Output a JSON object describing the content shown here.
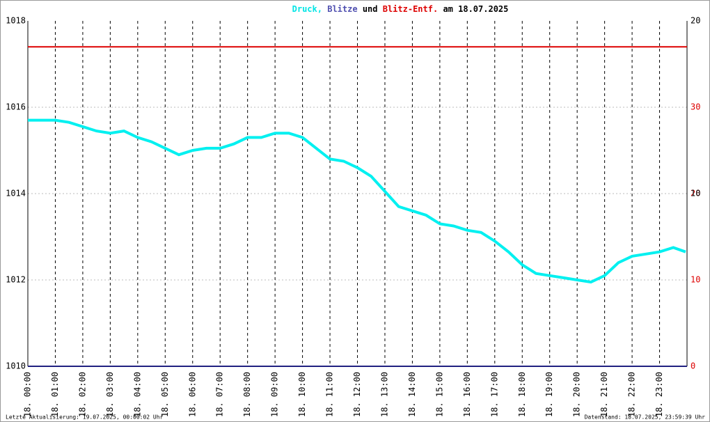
{
  "chart_data": {
    "type": "line",
    "title": [
      "Druck,",
      "Blitze",
      "und",
      "Blitz-Entf.",
      "am 18.07.2025"
    ],
    "title_colors": [
      "#00e5e5",
      "#5050b0",
      "#000000",
      "#dd0000",
      "#000000"
    ],
    "xlim": [
      0,
      24
    ],
    "xticks": [
      {
        "value": 0,
        "label": "18. 00:00"
      },
      {
        "value": 1,
        "label": "18. 01:00"
      },
      {
        "value": 2,
        "label": "18. 02:00"
      },
      {
        "value": 3,
        "label": "18. 03:00"
      },
      {
        "value": 4,
        "label": "18. 04:00"
      },
      {
        "value": 5,
        "label": "18. 05:00"
      },
      {
        "value": 6,
        "label": "18. 06:00"
      },
      {
        "value": 7,
        "label": "18. 07:00"
      },
      {
        "value": 8,
        "label": "18. 08:00"
      },
      {
        "value": 9,
        "label": "18. 09:00"
      },
      {
        "value": 10,
        "label": "18. 10:00"
      },
      {
        "value": 11,
        "label": "18. 11:00"
      },
      {
        "value": 12,
        "label": "18. 12:00"
      },
      {
        "value": 13,
        "label": "18. 13:00"
      },
      {
        "value": 14,
        "label": "18. 14:00"
      },
      {
        "value": 15,
        "label": "18. 15:00"
      },
      {
        "value": 16,
        "label": "18. 16:00"
      },
      {
        "value": 17,
        "label": "18. 17:00"
      },
      {
        "value": 18,
        "label": "18. 18:00"
      },
      {
        "value": 19,
        "label": "18. 19:00"
      },
      {
        "value": 20,
        "label": "18. 20:00"
      },
      {
        "value": 21,
        "label": "18. 21:00"
      },
      {
        "value": 22,
        "label": "18. 22:00"
      },
      {
        "value": 23,
        "label": "18. 23:00"
      }
    ],
    "ylim": [
      1010,
      1018
    ],
    "yticks": [
      1010,
      1012,
      1014,
      1016,
      1018
    ],
    "y2lim": [
      0,
      40
    ],
    "y2ticks": [
      0,
      10,
      20,
      30
    ],
    "y2color": "#dd0000",
    "y3lim": [
      0,
      20
    ],
    "y3ticks": [
      10,
      20
    ],
    "y3color": "#000000",
    "grid": true,
    "series": [
      {
        "name": "Druck",
        "color": "#00f0f0",
        "axis": "y",
        "x": [
          0,
          0.5,
          1,
          1.5,
          2,
          2.5,
          3,
          3.5,
          4,
          4.5,
          5,
          5.5,
          6,
          6.5,
          7,
          7.5,
          8,
          8.5,
          9,
          9.5,
          10,
          10.5,
          11,
          11.5,
          12,
          12.5,
          13,
          13.5,
          14,
          14.5,
          15,
          15.5,
          16,
          16.5,
          17,
          17.5,
          18,
          18.5,
          19,
          19.5,
          20,
          20.5,
          21,
          21.5,
          22,
          22.5,
          23,
          23.5,
          23.95
        ],
        "values": [
          1015.7,
          1015.7,
          1015.7,
          1015.65,
          1015.55,
          1015.45,
          1015.4,
          1015.45,
          1015.3,
          1015.2,
          1015.05,
          1014.9,
          1015.0,
          1015.05,
          1015.05,
          1015.15,
          1015.3,
          1015.3,
          1015.4,
          1015.4,
          1015.3,
          1015.05,
          1014.8,
          1014.75,
          1014.6,
          1014.4,
          1014.05,
          1013.7,
          1013.6,
          1013.5,
          1013.3,
          1013.25,
          1013.15,
          1013.1,
          1012.9,
          1012.65,
          1012.35,
          1012.15,
          1012.1,
          1012.05,
          1012.0,
          1011.95,
          1012.1,
          1012.4,
          1012.55,
          1012.6,
          1012.65,
          1012.75,
          1012.65
        ]
      },
      {
        "name": "Blitze",
        "color": "#202080",
        "axis": "y3",
        "x": [
          0,
          24
        ],
        "values": [
          0,
          0
        ]
      },
      {
        "name": "Blitz-Entf.",
        "color": "#dd0000",
        "axis": "y2",
        "x": [
          0,
          24
        ],
        "values": [
          37,
          37
        ]
      }
    ],
    "footer_left": "Letzte Aktualisierung: 19.07.2025, 00:00:02 Uhr",
    "footer_right": "Datenstand: 18.07.2025, 23:59:39 Uhr"
  }
}
